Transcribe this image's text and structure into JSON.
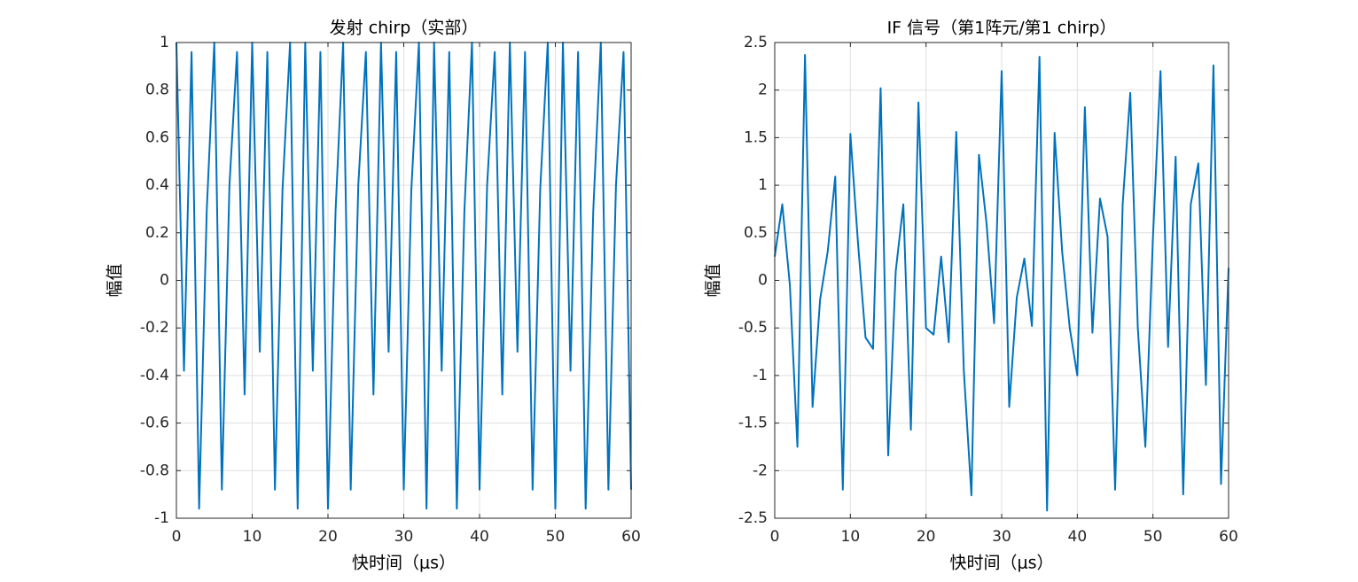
{
  "chart_data": [
    {
      "type": "line",
      "title": "发射 chirp（实部）",
      "xlabel": "快时间（μs）",
      "ylabel": "幅值",
      "x": [
        0,
        1,
        2,
        3,
        4,
        5,
        6,
        7,
        8,
        9,
        10,
        11,
        12,
        13,
        14,
        15,
        16,
        17,
        18,
        19,
        20,
        21,
        22,
        23,
        24,
        25,
        26,
        27,
        28,
        29,
        30,
        31,
        32,
        33,
        34,
        35,
        36,
        37,
        38,
        39,
        40,
        41,
        42,
        43,
        44,
        45,
        46,
        47,
        48,
        49,
        50,
        51,
        52,
        53,
        54,
        55,
        56,
        57,
        58,
        59,
        60
      ],
      "values": [
        1,
        -0.38,
        0.96,
        -0.96,
        0.29,
        1,
        -0.88,
        0.4,
        0.96,
        -0.48,
        1,
        -0.3,
        0.96,
        -0.88,
        0.38,
        1,
        -0.96,
        1,
        -0.38,
        0.96,
        -0.96,
        0.29,
        1,
        -0.88,
        0.4,
        0.96,
        -0.48,
        1,
        -0.3,
        0.96,
        -0.88,
        0.38,
        1,
        -0.96,
        1,
        -0.38,
        0.96,
        -0.96,
        0.29,
        1,
        -0.88,
        0.4,
        0.96,
        -0.48,
        1,
        -0.3,
        0.96,
        -0.88,
        0.38,
        1,
        -0.96,
        1,
        -0.38,
        0.96,
        -0.96,
        0.29,
        1,
        -0.88,
        0.4,
        0.96,
        -0.88
      ],
      "color": "#0072BD",
      "xlim": [
        0,
        60
      ],
      "ylim": [
        -1,
        1
      ],
      "xticks": [
        0,
        10,
        20,
        30,
        40,
        50,
        60
      ],
      "yticks": [
        -1,
        -0.8,
        -0.6,
        -0.4,
        -0.2,
        0,
        0.2,
        0.4,
        0.6,
        0.8,
        1
      ],
      "grid": true
    },
    {
      "type": "line",
      "title": "IF 信号（第1阵元/第1 chirp）",
      "xlabel": "快时间（μs）",
      "ylabel": "幅值",
      "x": [
        0,
        1,
        2,
        3,
        4,
        5,
        6,
        7,
        8,
        9,
        10,
        11,
        12,
        13,
        14,
        15,
        16,
        17,
        18,
        19,
        20,
        21,
        22,
        23,
        24,
        25,
        26,
        27,
        28,
        29,
        30,
        31,
        32,
        33,
        34,
        35,
        36,
        37,
        38,
        39,
        40,
        41,
        42,
        43,
        44,
        45,
        46,
        47,
        48,
        49,
        50,
        51,
        52,
        53,
        54,
        55,
        56,
        57,
        58,
        59,
        60
      ],
      "values": [
        0.25,
        0.8,
        -0.05,
        -1.75,
        2.37,
        -1.33,
        -0.2,
        0.3,
        1.09,
        -2.2,
        1.54,
        0.4,
        -0.6,
        -0.72,
        2.02,
        -1.84,
        0.1,
        0.8,
        -1.57,
        1.87,
        -0.5,
        -0.57,
        0.25,
        -0.65,
        1.56,
        -0.95,
        -2.26,
        1.32,
        0.6,
        -0.45,
        2.2,
        -1.33,
        -0.18,
        0.23,
        -0.48,
        2.35,
        -2.42,
        1.55,
        0.3,
        -0.5,
        -1.0,
        1.82,
        -0.55,
        0.86,
        0.46,
        -2.2,
        0.8,
        1.97,
        -0.5,
        -1.75,
        0.45,
        2.2,
        -0.7,
        1.3,
        -2.25,
        0.8,
        1.23,
        -1.1,
        2.26,
        -2.14,
        0.13
      ],
      "color": "#0072BD",
      "xlim": [
        0,
        60
      ],
      "ylim": [
        -2.5,
        2.5
      ],
      "xticks": [
        0,
        10,
        20,
        30,
        40,
        50,
        60
      ],
      "yticks": [
        -2.5,
        -2,
        -1.5,
        -1,
        -0.5,
        0,
        0.5,
        1,
        1.5,
        2,
        2.5
      ],
      "grid": true
    }
  ]
}
